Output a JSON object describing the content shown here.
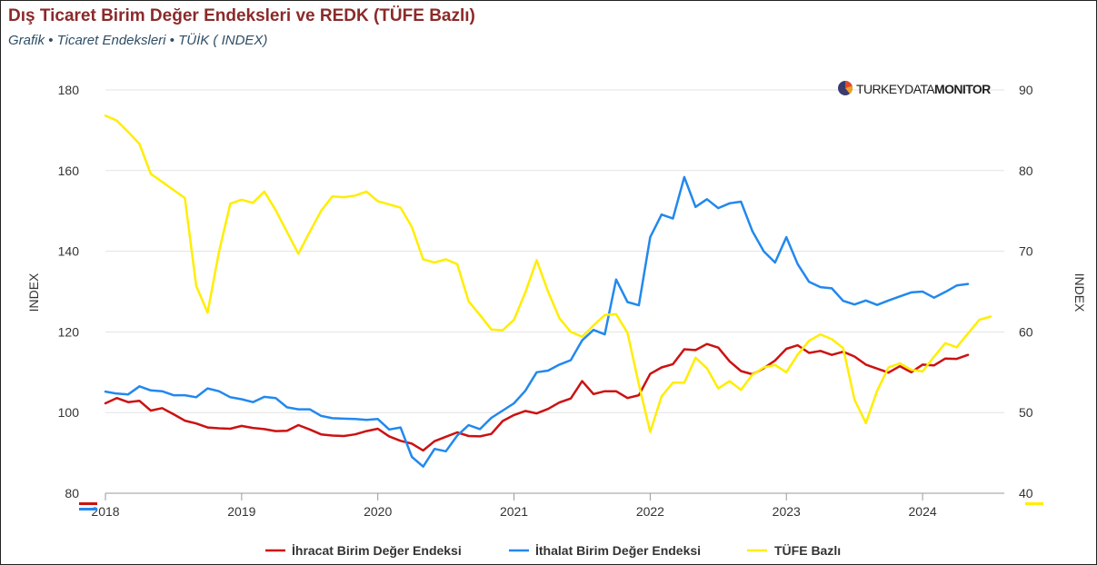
{
  "header": {
    "title": "Dış Ticaret Birim Değer Endeksleri ve REDK (TÜFE Bazlı)",
    "subtitle": "Grafik • Ticaret Endeksleri • TÜİK ( INDEX)"
  },
  "brand": {
    "text_light": "TURKEYDATA",
    "text_bold": "MONITOR",
    "logo_icon": "pie-logo-icon"
  },
  "colors": {
    "export": "#cc1111",
    "import": "#2288ee",
    "tufe": "#ffee00",
    "title": "#8b2a2a",
    "subtitle": "#2f4e66"
  },
  "chart_data": {
    "type": "line",
    "x_start": "2018-01",
    "frequency": "monthly",
    "xlim": [
      2018.0,
      2024.6
    ],
    "x_ticks": [
      "2018",
      "2019",
      "2020",
      "2021",
      "2022",
      "2023",
      "2024"
    ],
    "ylabel": "INDEX",
    "ylabel_right": "INDEX",
    "ylim": [
      80,
      180
    ],
    "y_ticks": [
      80,
      100,
      120,
      140,
      160,
      180
    ],
    "ylim_right": [
      40,
      90
    ],
    "y_ticks_right": [
      40,
      50,
      60,
      70,
      80,
      90
    ],
    "grid": true,
    "legend_position": "bottom-center",
    "series": [
      {
        "name": "İhracat Birim Değer Endeksi",
        "axis": "left",
        "color": "#cc1111",
        "values": [
          102.3,
          103.6,
          102.6,
          102.9,
          100.5,
          101.1,
          99.6,
          98.0,
          97.3,
          96.3,
          96.1,
          96.0,
          96.7,
          96.2,
          95.9,
          95.4,
          95.5,
          96.9,
          95.8,
          94.6,
          94.3,
          94.2,
          94.6,
          95.4,
          96.0,
          94.1,
          93.0,
          92.3,
          90.6,
          92.9,
          94.0,
          95.1,
          94.2,
          94.1,
          94.7,
          97.9,
          99.4,
          100.4,
          99.8,
          100.9,
          102.5,
          103.5,
          107.8,
          104.6,
          105.3,
          105.3,
          103.6,
          104.3,
          109.6,
          111.2,
          112.0,
          115.7,
          115.5,
          117.0,
          116.1,
          112.7,
          110.3,
          109.5,
          111.0,
          112.9,
          115.8,
          116.7,
          114.8,
          115.3,
          114.3,
          115.1,
          113.9,
          111.9,
          110.9,
          109.9,
          111.5,
          110.0,
          111.9,
          111.7,
          113.4,
          113.3,
          114.3
        ]
      },
      {
        "name": "İthalat Birim Değer Endeksi",
        "axis": "left",
        "color": "#2288ee",
        "values": [
          105.2,
          104.7,
          104.5,
          106.5,
          105.5,
          105.3,
          104.3,
          104.3,
          103.8,
          106.0,
          105.3,
          103.8,
          103.3,
          102.6,
          103.9,
          103.6,
          101.3,
          100.8,
          100.8,
          99.2,
          98.6,
          98.5,
          98.4,
          98.2,
          98.4,
          95.8,
          96.3,
          89.0,
          86.6,
          91.0,
          90.4,
          94.3,
          96.9,
          95.9,
          98.7,
          100.5,
          102.3,
          105.4,
          110.0,
          110.4,
          111.9,
          113.0,
          117.9,
          120.5,
          119.4,
          133.0,
          127.4,
          126.6,
          143.5,
          149.1,
          148.1,
          158.4,
          151.0,
          152.9,
          150.7,
          151.9,
          152.3,
          145.0,
          140.0,
          137.2,
          143.5,
          136.8,
          132.4,
          131.1,
          130.8,
          127.7,
          126.8,
          127.8,
          126.7,
          127.8,
          128.8,
          129.8,
          130.0,
          128.5,
          129.9,
          131.5,
          131.9
        ]
      },
      {
        "name": "TÜFE Bazlı",
        "axis": "right",
        "color": "#ffee00",
        "values": [
          86.8,
          86.2,
          84.8,
          83.3,
          79.6,
          78.6,
          77.6,
          76.6,
          65.7,
          62.4,
          69.9,
          75.9,
          76.4,
          76.0,
          77.4,
          75.1,
          72.4,
          69.7,
          72.4,
          75.0,
          76.8,
          76.7,
          76.9,
          77.4,
          76.2,
          75.8,
          75.4,
          73.0,
          69.0,
          68.6,
          69.0,
          68.4,
          63.8,
          62.1,
          60.3,
          60.2,
          61.5,
          64.9,
          68.9,
          65.0,
          61.7,
          60.0,
          59.4,
          60.8,
          62.1,
          62.2,
          59.9,
          53.5,
          47.6,
          52.0,
          53.7,
          53.7,
          56.8,
          55.5,
          53.0,
          53.9,
          52.8,
          54.7,
          55.6,
          55.9,
          55.0,
          57.2,
          58.9,
          59.7,
          59.1,
          58.0,
          51.6,
          48.7,
          52.7,
          55.6,
          56.1,
          55.3,
          55.1,
          56.9,
          58.6,
          58.1,
          59.8,
          61.5,
          61.9
        ]
      }
    ]
  }
}
